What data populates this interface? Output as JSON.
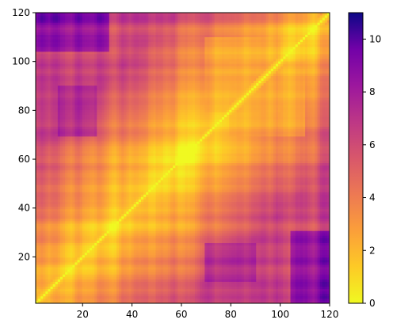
{
  "chart_data": {
    "type": "heatmap",
    "title": "",
    "xlabel": "",
    "ylabel": "",
    "xlim": [
      1,
      120
    ],
    "ylim": [
      1,
      120
    ],
    "x_ticks": [
      20,
      40,
      60,
      80,
      100,
      120
    ],
    "y_ticks": [
      20,
      40,
      60,
      80,
      100,
      120
    ],
    "x_tick_labels": [
      "20",
      "40",
      "60",
      "80",
      "100",
      "120"
    ],
    "y_tick_labels": [
      "20",
      "40",
      "60",
      "80",
      "100",
      "120"
    ],
    "grid": false,
    "matrix_size": 120,
    "symmetric": true,
    "diagonal_value": 0,
    "colormap": "plasma_r",
    "colorbar": {
      "vmin": 0,
      "vmax": 11,
      "ticks": [
        0,
        2,
        4,
        6,
        8,
        10
      ],
      "tick_labels": [
        "0",
        "2",
        "4",
        "6",
        "8",
        "10"
      ],
      "position": "right"
    },
    "regions": [
      {
        "x_range": [
          105,
          120
        ],
        "y_range": [
          1,
          30
        ],
        "approx_value": 10
      },
      {
        "x_range": [
          1,
          30
        ],
        "y_range": [
          105,
          120
        ],
        "approx_value": 10
      },
      {
        "x_range": [
          10,
          25
        ],
        "y_range": [
          70,
          90
        ],
        "approx_value": 8
      },
      {
        "x_range": [
          70,
          90
        ],
        "y_range": [
          10,
          25
        ],
        "approx_value": 8
      },
      {
        "x_range": [
          70,
          100
        ],
        "y_range": [
          80,
          110
        ],
        "approx_value": 2
      },
      {
        "x_range": [
          80,
          110
        ],
        "y_range": [
          70,
          100
        ],
        "approx_value": 2
      }
    ]
  }
}
